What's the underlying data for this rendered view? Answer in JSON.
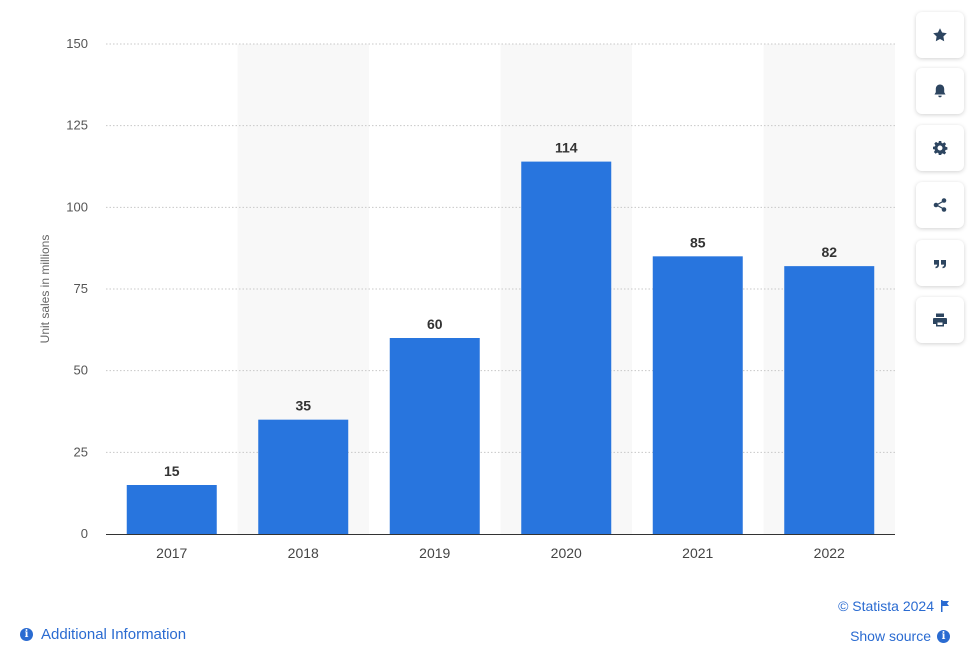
{
  "chart_data": {
    "type": "bar",
    "categories": [
      "2017",
      "2018",
      "2019",
      "2020",
      "2021",
      "2022"
    ],
    "values": [
      15,
      35,
      60,
      114,
      85,
      82
    ],
    "data_labels": [
      "15",
      "35",
      "60",
      "114",
      "85",
      "82"
    ],
    "title": "",
    "xlabel": "",
    "ylabel": "Unit sales in millions",
    "ylim": [
      0,
      150
    ],
    "yticks": [
      "0",
      "25",
      "50",
      "75",
      "100",
      "125",
      "150"
    ],
    "ytick_values": [
      0,
      25,
      50,
      75,
      100,
      125,
      150
    ],
    "grid": true,
    "bar_color": "#2875de",
    "band_color": "#f8f8f8"
  },
  "toolbar": {
    "items": [
      {
        "name": "favorite-button",
        "icon": "star-icon"
      },
      {
        "name": "notification-button",
        "icon": "bell-icon"
      },
      {
        "name": "settings-button",
        "icon": "gear-icon"
      },
      {
        "name": "share-button",
        "icon": "share-icon"
      },
      {
        "name": "cite-button",
        "icon": "quote-icon"
      },
      {
        "name": "print-button",
        "icon": "printer-icon"
      }
    ]
  },
  "footer": {
    "credit": "© Statista 2024",
    "show_source": "Show source",
    "additional_info": "Additional Information"
  },
  "colors": {
    "accent": "#2a6bd1",
    "icon": "#2d4560"
  }
}
